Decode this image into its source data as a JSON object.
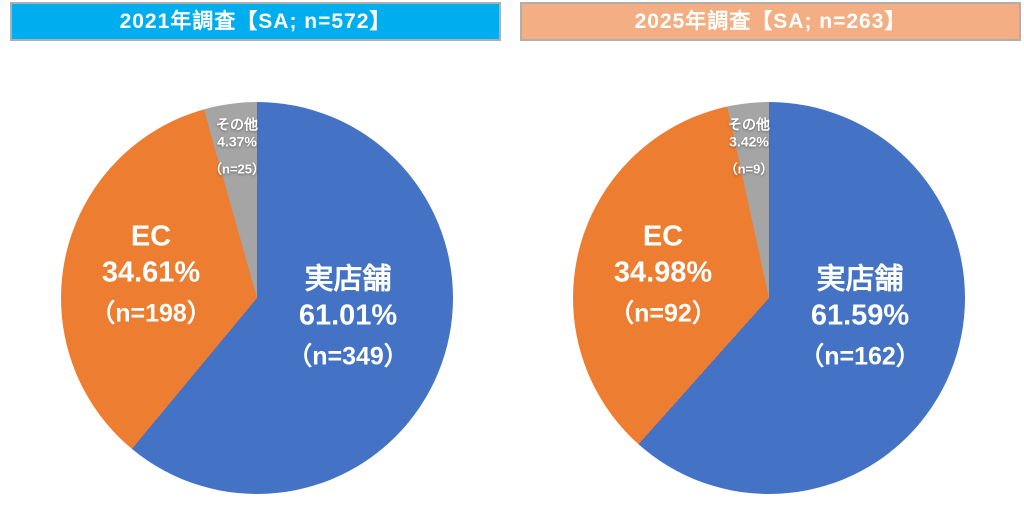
{
  "page": {
    "background_color": "#FFFFFF"
  },
  "chart_data": [
    {
      "type": "pie",
      "title": "2021年調査【SA; n=572】",
      "title_bg_color": "#00AEEF",
      "title_border_color": "#AFAFAF",
      "n_total": 572,
      "start_angle_deg": 0,
      "direction": "clockwise",
      "legend": "none (labels inside slices)",
      "slices": [
        {
          "label": "実店舗",
          "pct": 61.01,
          "n": 349,
          "pct_text": "61.01%",
          "n_text": "（n=349）",
          "color": "#4472C4"
        },
        {
          "label": "EC",
          "pct": 34.61,
          "n": 198,
          "pct_text": "34.61%",
          "n_text": "（n=198）",
          "color": "#ED7D31"
        },
        {
          "label": "その他",
          "pct": 4.37,
          "n": 25,
          "pct_text": "4.37%",
          "n_text": "（n=25）",
          "color": "#A5A5A5"
        }
      ]
    },
    {
      "type": "pie",
      "title": "2025年調査【SA; n=263】",
      "title_bg_color": "#F3AF83",
      "title_border_color": "#AFAFAF",
      "n_total": 263,
      "start_angle_deg": 0,
      "direction": "clockwise",
      "legend": "none (labels inside slices)",
      "slices": [
        {
          "label": "実店舗",
          "pct": 61.59,
          "n": 162,
          "pct_text": "61.59%",
          "n_text": "（n=162）",
          "color": "#4472C4"
        },
        {
          "label": "EC",
          "pct": 34.98,
          "n": 92,
          "pct_text": "34.98%",
          "n_text": "（n=92）",
          "color": "#ED7D31"
        },
        {
          "label": "その他",
          "pct": 3.42,
          "n": 9,
          "pct_text": "3.42%",
          "n_text": "（n=9）",
          "color": "#A5A5A5"
        }
      ]
    }
  ]
}
